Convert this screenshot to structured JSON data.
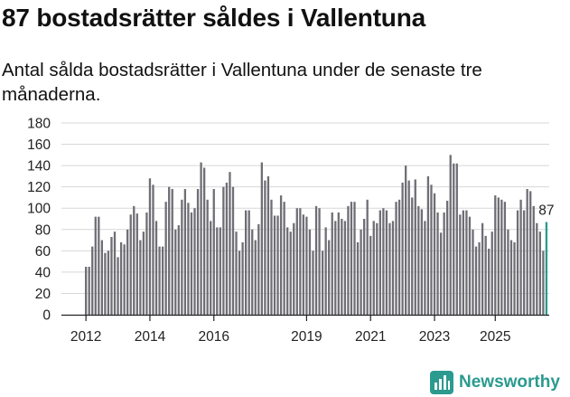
{
  "title": "87 bostadsrätter såldes i Vallentuna",
  "subtitle": "Antal sålda bostadsrätter i Vallentuna under de senaste tre månaderna.",
  "brand": {
    "name": "Newsworthy",
    "color": "#2b9a8f"
  },
  "colors": {
    "bar": "#6f6e75",
    "highlight": "#2b9a8f",
    "grid": "#d7d7d7",
    "axis": "#222222"
  },
  "chart_data": {
    "type": "bar",
    "title": "87 bostadsrätter såldes i Vallentuna",
    "xlabel": "",
    "ylabel": "",
    "ylim": [
      0,
      180
    ],
    "yticks": [
      "0",
      "20",
      "40",
      "60",
      "80",
      "100",
      "120",
      "140",
      "160",
      "180"
    ],
    "xtick_labels": [
      "2012",
      "2014",
      "2016",
      "2019",
      "2021",
      "2023",
      "2025"
    ],
    "xtick_index": [
      0,
      20,
      40,
      69,
      89,
      109,
      128
    ],
    "grid": true,
    "last_value_label": "87",
    "start": "2012-01",
    "frequency": "monthly",
    "values": [
      45,
      45,
      64,
      92,
      92,
      70,
      58,
      60,
      73,
      78,
      54,
      68,
      66,
      80,
      94,
      102,
      95,
      70,
      78,
      96,
      128,
      122,
      88,
      64,
      64,
      106,
      120,
      118,
      80,
      84,
      108,
      118,
      105,
      96,
      100,
      118,
      143,
      138,
      108,
      88,
      118,
      82,
      82,
      120,
      124,
      134,
      120,
      78,
      60,
      68,
      98,
      98,
      80,
      70,
      85,
      143,
      126,
      130,
      108,
      93,
      93,
      112,
      106,
      82,
      78,
      86,
      100,
      100,
      94,
      92,
      80,
      60,
      102,
      100,
      60,
      82,
      70,
      96,
      88,
      96,
      90,
      88,
      102,
      106,
      106,
      68,
      80,
      90,
      108,
      74,
      88,
      86,
      98,
      100,
      98,
      86,
      88,
      106,
      108,
      124,
      140,
      126,
      110,
      127,
      102,
      99,
      88,
      130,
      122,
      114,
      96,
      77,
      96,
      107,
      150,
      142,
      142,
      94,
      98,
      98,
      92,
      80,
      64,
      68,
      86,
      74,
      62,
      78,
      112,
      110,
      108,
      106,
      80,
      70,
      68,
      98,
      108,
      98,
      118,
      116,
      102,
      86,
      78,
      60,
      87
    ]
  }
}
